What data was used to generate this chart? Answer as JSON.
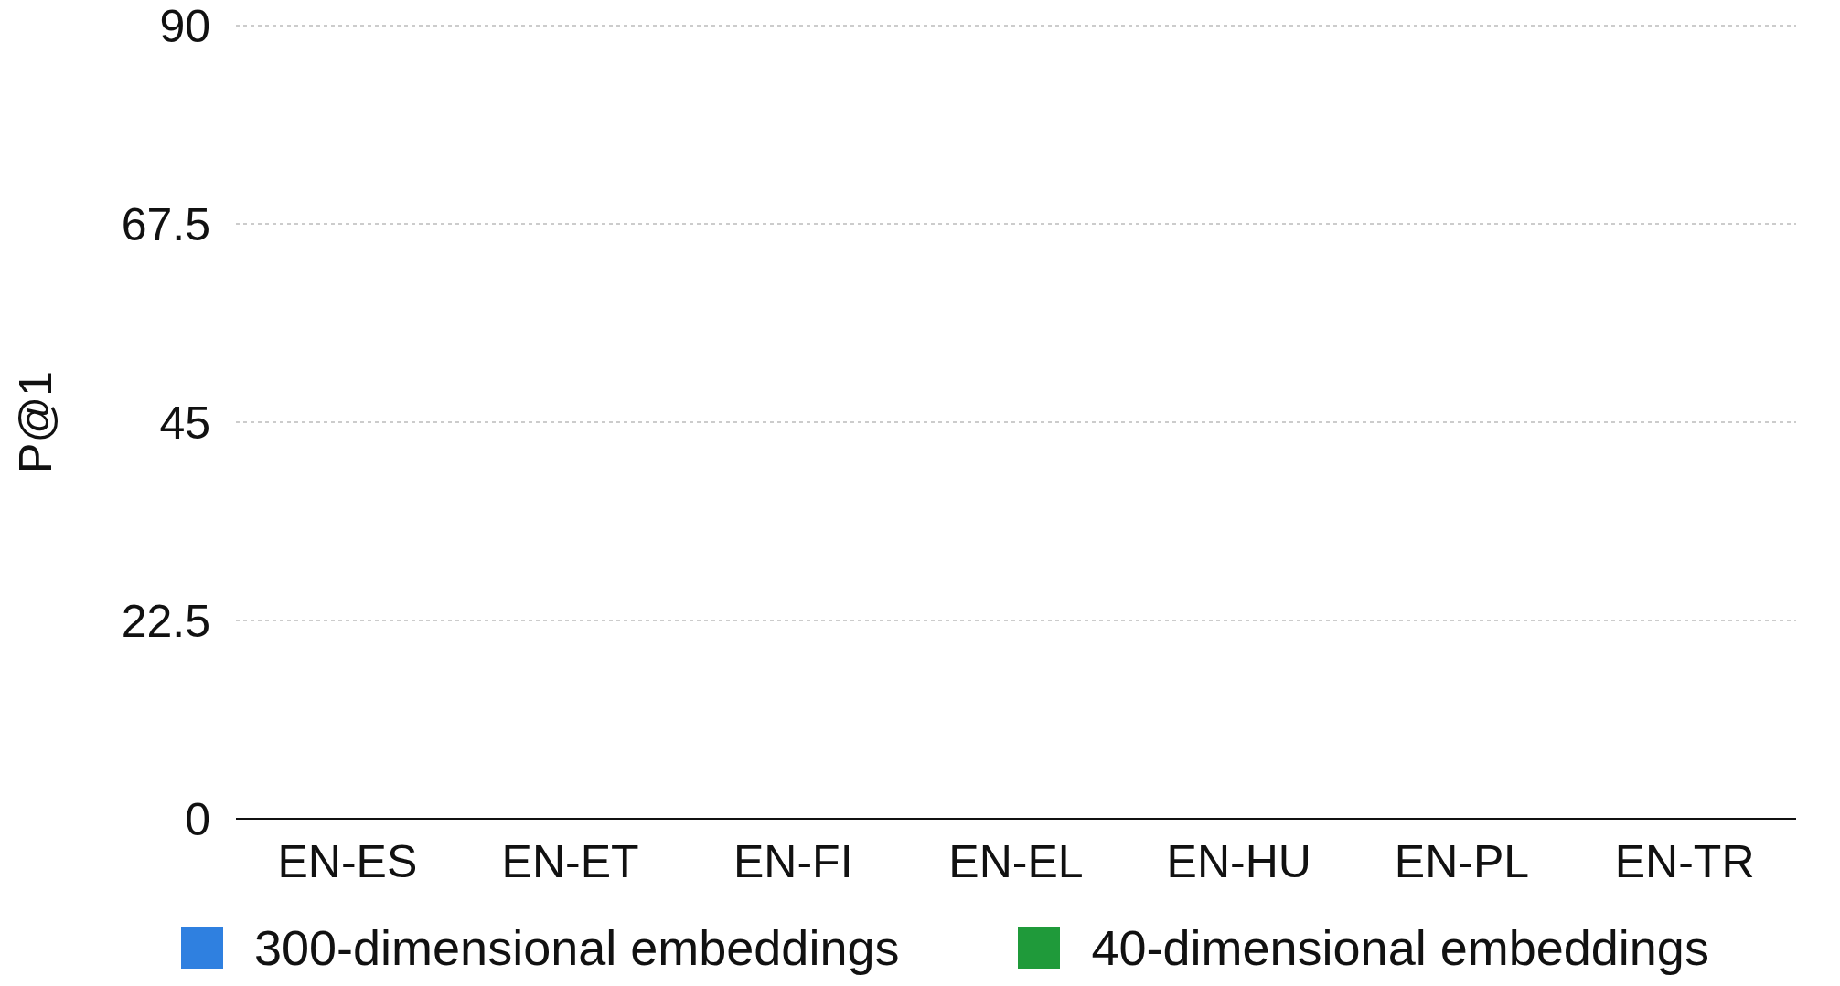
{
  "chart_data": {
    "type": "bar",
    "ylabel": "P@1",
    "categories": [
      "EN-ES",
      "EN-ET",
      "EN-FI",
      "EN-EL",
      "EN-HU",
      "EN-PL",
      "EN-TR"
    ],
    "series": [
      {
        "name": "300-dimensional embeddings",
        "color": "#2f80e0",
        "values": [
          null,
          null,
          null,
          null,
          null,
          null,
          null
        ]
      },
      {
        "name": "40-dimensional embeddings",
        "color": "#1f9a3a",
        "values": [
          null,
          null,
          null,
          null,
          null,
          null,
          null
        ]
      }
    ],
    "ylim": [
      0,
      90
    ],
    "yticks": [
      0,
      22.5,
      45,
      67.5,
      90
    ],
    "grid": "y",
    "legend": "bottom"
  }
}
